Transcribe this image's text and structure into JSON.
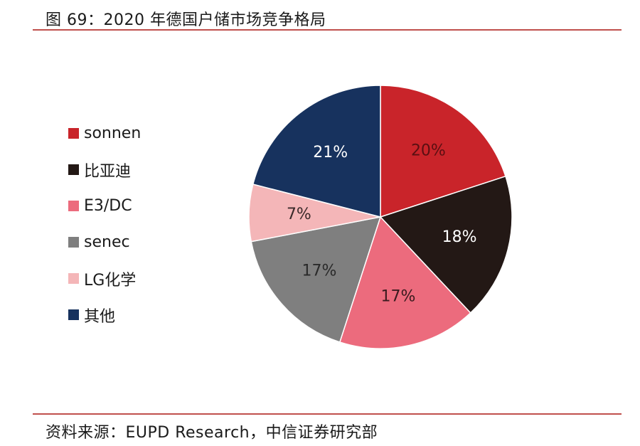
{
  "header": {
    "title": "图 69：2020 年德国户储市场竞争格局"
  },
  "footer": {
    "source": "资料来源：EUPD Research，中信证券研究部"
  },
  "chart_data": {
    "type": "pie",
    "legend_position": "left",
    "labels": [
      "sonnen",
      "比亚迪",
      "E3/DC",
      "senec",
      "LG化学",
      "其他"
    ],
    "values": [
      20,
      18,
      17,
      17,
      7,
      21
    ],
    "value_labels": [
      "20%",
      "18%",
      "17%",
      "17%",
      "7%",
      "21%"
    ],
    "colors": [
      "#c9242a",
      "#231815",
      "#ec6b7d",
      "#7f7f7f",
      "#f4b6b8",
      "#17325e"
    ],
    "label_colors": [
      "#5a0f12",
      "#ffffff",
      "#3a1a1e",
      "#2a2a2a",
      "#3a2a2a",
      "#ffffff"
    ]
  }
}
